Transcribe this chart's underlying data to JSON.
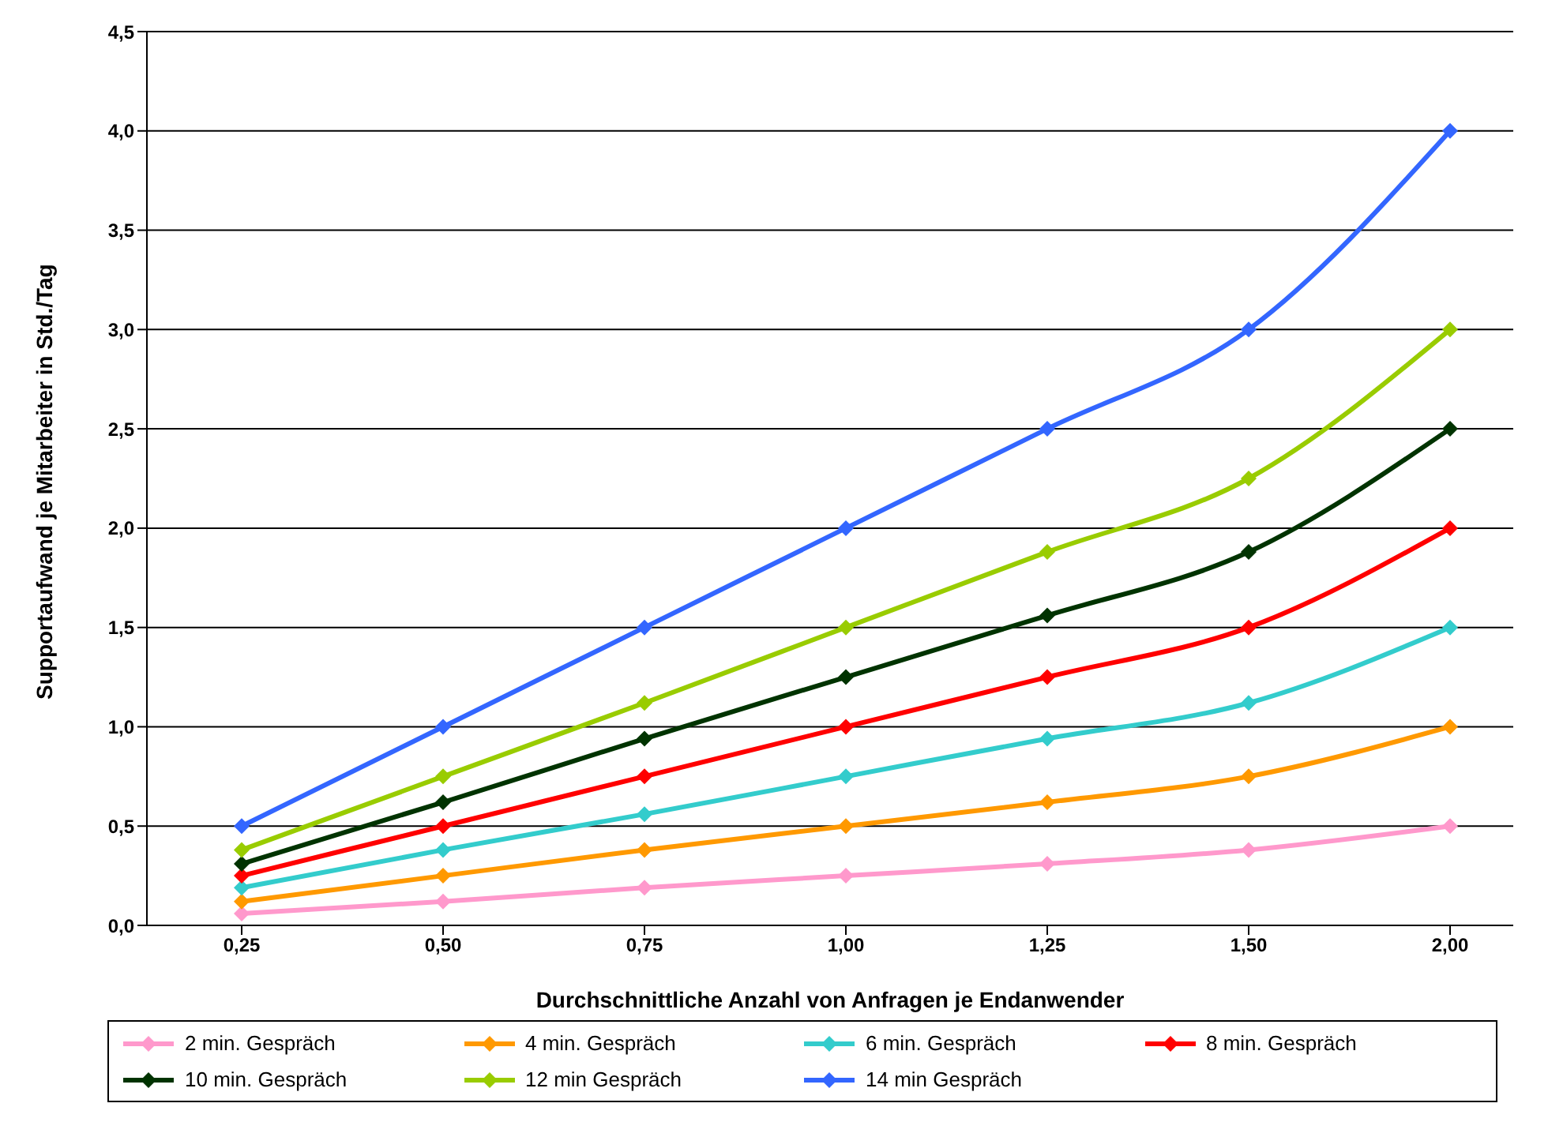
{
  "chart_data": {
    "type": "line",
    "xlabel": "Durchschnittliche Anzahl von Anfragen je Endanwender",
    "ylabel": "Supportaufwand je Mitarbeiter in Std./Tag",
    "categories": [
      "0,25",
      "0,50",
      "0,75",
      "1,00",
      "1,25",
      "1,50",
      "2,00"
    ],
    "series": [
      {
        "name": "2 min. Gespräch",
        "color": "#ff99cc",
        "values": [
          0.06,
          0.12,
          0.19,
          0.25,
          0.31,
          0.38,
          0.5
        ]
      },
      {
        "name": "4 min. Gespräch",
        "color": "#ff9900",
        "values": [
          0.12,
          0.25,
          0.38,
          0.5,
          0.62,
          0.75,
          1.0
        ]
      },
      {
        "name": "6 min. Gespräch",
        "color": "#33cccc",
        "values": [
          0.19,
          0.38,
          0.56,
          0.75,
          0.94,
          1.12,
          1.5
        ]
      },
      {
        "name": "8 min. Gespräch",
        "color": "#ff0000",
        "values": [
          0.25,
          0.5,
          0.75,
          1.0,
          1.25,
          1.5,
          2.0
        ]
      },
      {
        "name": "10 min. Gespräch",
        "color": "#003300",
        "values": [
          0.31,
          0.62,
          0.94,
          1.25,
          1.56,
          1.88,
          2.5
        ]
      },
      {
        "name": "12 min Gespräch",
        "color": "#99cc00",
        "values": [
          0.38,
          0.75,
          1.12,
          1.5,
          1.88,
          2.25,
          3.0
        ]
      },
      {
        "name": "14 min Gespräch",
        "color": "#3366ff",
        "values": [
          0.5,
          1.0,
          1.5,
          2.0,
          2.5,
          3.0,
          4.0
        ]
      }
    ],
    "ylim": [
      0,
      4.5
    ],
    "yticks": [
      {
        "value": 0,
        "label": "0,0"
      },
      {
        "value": 0.5,
        "label": "0,5"
      },
      {
        "value": 1,
        "label": "1,0"
      },
      {
        "value": 1.5,
        "label": "1,5"
      },
      {
        "value": 2,
        "label": "2,0"
      },
      {
        "value": 2.5,
        "label": "2,5"
      },
      {
        "value": 3,
        "label": "3,0"
      },
      {
        "value": 3.5,
        "label": "3,5"
      },
      {
        "value": 4,
        "label": "4,0"
      },
      {
        "value": 4.5,
        "label": "4,5"
      }
    ],
    "grid": "y",
    "legend": "bottom",
    "marker": "diamond",
    "line_style": "solid"
  }
}
